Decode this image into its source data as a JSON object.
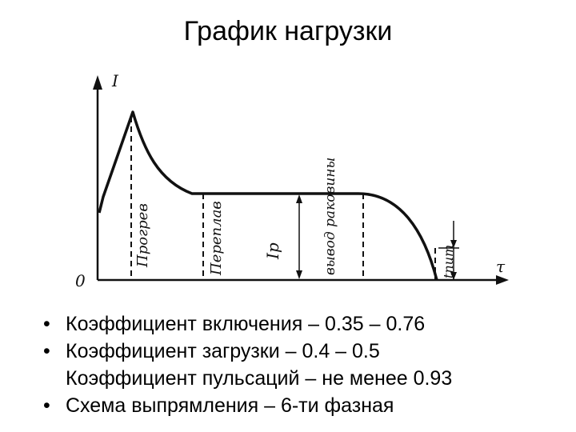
{
  "slide": {
    "title": "График нагрузки"
  },
  "diagram": {
    "axis_y_label": "I",
    "axis_x_label": "τ",
    "origin_label": "0",
    "zones": [
      "Прогрев",
      "Переплав",
      "Iр",
      "вывод раковины",
      "tпит"
    ]
  },
  "bullets": {
    "marker": "•",
    "items": [
      {
        "text": "Коэффициент включения – 0.35 – 0.76"
      },
      {
        "text": "Коэффициент загрузки – 0.4 – 0.5",
        "continuation": "Коэффициент пульсаций – не менее 0.93"
      },
      {
        "text": "Схема выпрямления – 6-ти фазная"
      }
    ]
  }
}
